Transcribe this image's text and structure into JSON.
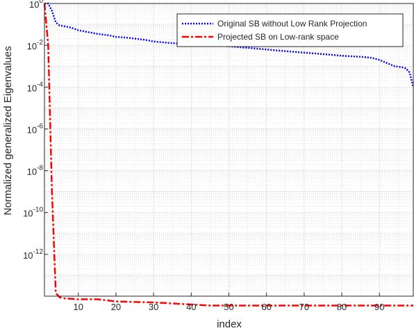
{
  "chart_data": {
    "type": "line",
    "title": "",
    "xlabel": "index",
    "ylabel": "Normalized generalized Eigenvalues",
    "y_scale": "log",
    "grid": true,
    "minor_grid": true,
    "legend_position": "top-right",
    "xlim": [
      1,
      99
    ],
    "ylim_exponent": [
      -14,
      0
    ],
    "x_ticks": [
      10,
      20,
      30,
      40,
      50,
      60,
      70,
      80,
      90
    ],
    "y_tick_exponents": [
      0,
      -2,
      -4,
      -6,
      -8,
      -10,
      -12
    ],
    "y_tick_labels": [
      {
        "base": "10",
        "exp": "0"
      },
      {
        "base": "10",
        "exp": "-2"
      },
      {
        "base": "10",
        "exp": "-4"
      },
      {
        "base": "10",
        "exp": "-6"
      },
      {
        "base": "10",
        "exp": "-8"
      },
      {
        "base": "10",
        "exp": "-10"
      },
      {
        "base": "10",
        "exp": "-12"
      }
    ],
    "series": [
      {
        "name": "Original SB without Low Rank Projection",
        "color": "#0000ff",
        "style": "dotted",
        "x": [
          1,
          2,
          3,
          4,
          5,
          6,
          8,
          10,
          12,
          15,
          18,
          20,
          22,
          25,
          28,
          30,
          35,
          40,
          45,
          50,
          55,
          60,
          65,
          70,
          75,
          80,
          85,
          88,
          90,
          92,
          94,
          96,
          97,
          98,
          99
        ],
        "y_log10": [
          0.0,
          0.0,
          -0.35,
          -0.9,
          -1.05,
          -1.08,
          -1.15,
          -1.28,
          -1.35,
          -1.45,
          -1.52,
          -1.6,
          -1.62,
          -1.68,
          -1.75,
          -1.82,
          -1.9,
          -1.95,
          -2.0,
          -2.05,
          -2.12,
          -2.2,
          -2.28,
          -2.35,
          -2.42,
          -2.5,
          -2.55,
          -2.6,
          -2.7,
          -2.85,
          -3.0,
          -3.05,
          -3.1,
          -3.3,
          -4.0
        ]
      },
      {
        "name": "Projected SB on Low-rank space",
        "color": "#ff0000",
        "style": "dashdot",
        "x": [
          1,
          2,
          3,
          4,
          5,
          6,
          10,
          15,
          20,
          25,
          30,
          35,
          40,
          45,
          50,
          55,
          60,
          70,
          80,
          90,
          99
        ],
        "y_log10": [
          0.0,
          -2.0,
          -9.0,
          -13.85,
          -14.05,
          -14.1,
          -14.15,
          -14.15,
          -14.25,
          -14.28,
          -14.3,
          -14.35,
          -14.4,
          -14.45,
          -14.45,
          -14.45,
          -14.45,
          -14.45,
          -14.45,
          -14.45,
          -14.45
        ]
      }
    ]
  }
}
